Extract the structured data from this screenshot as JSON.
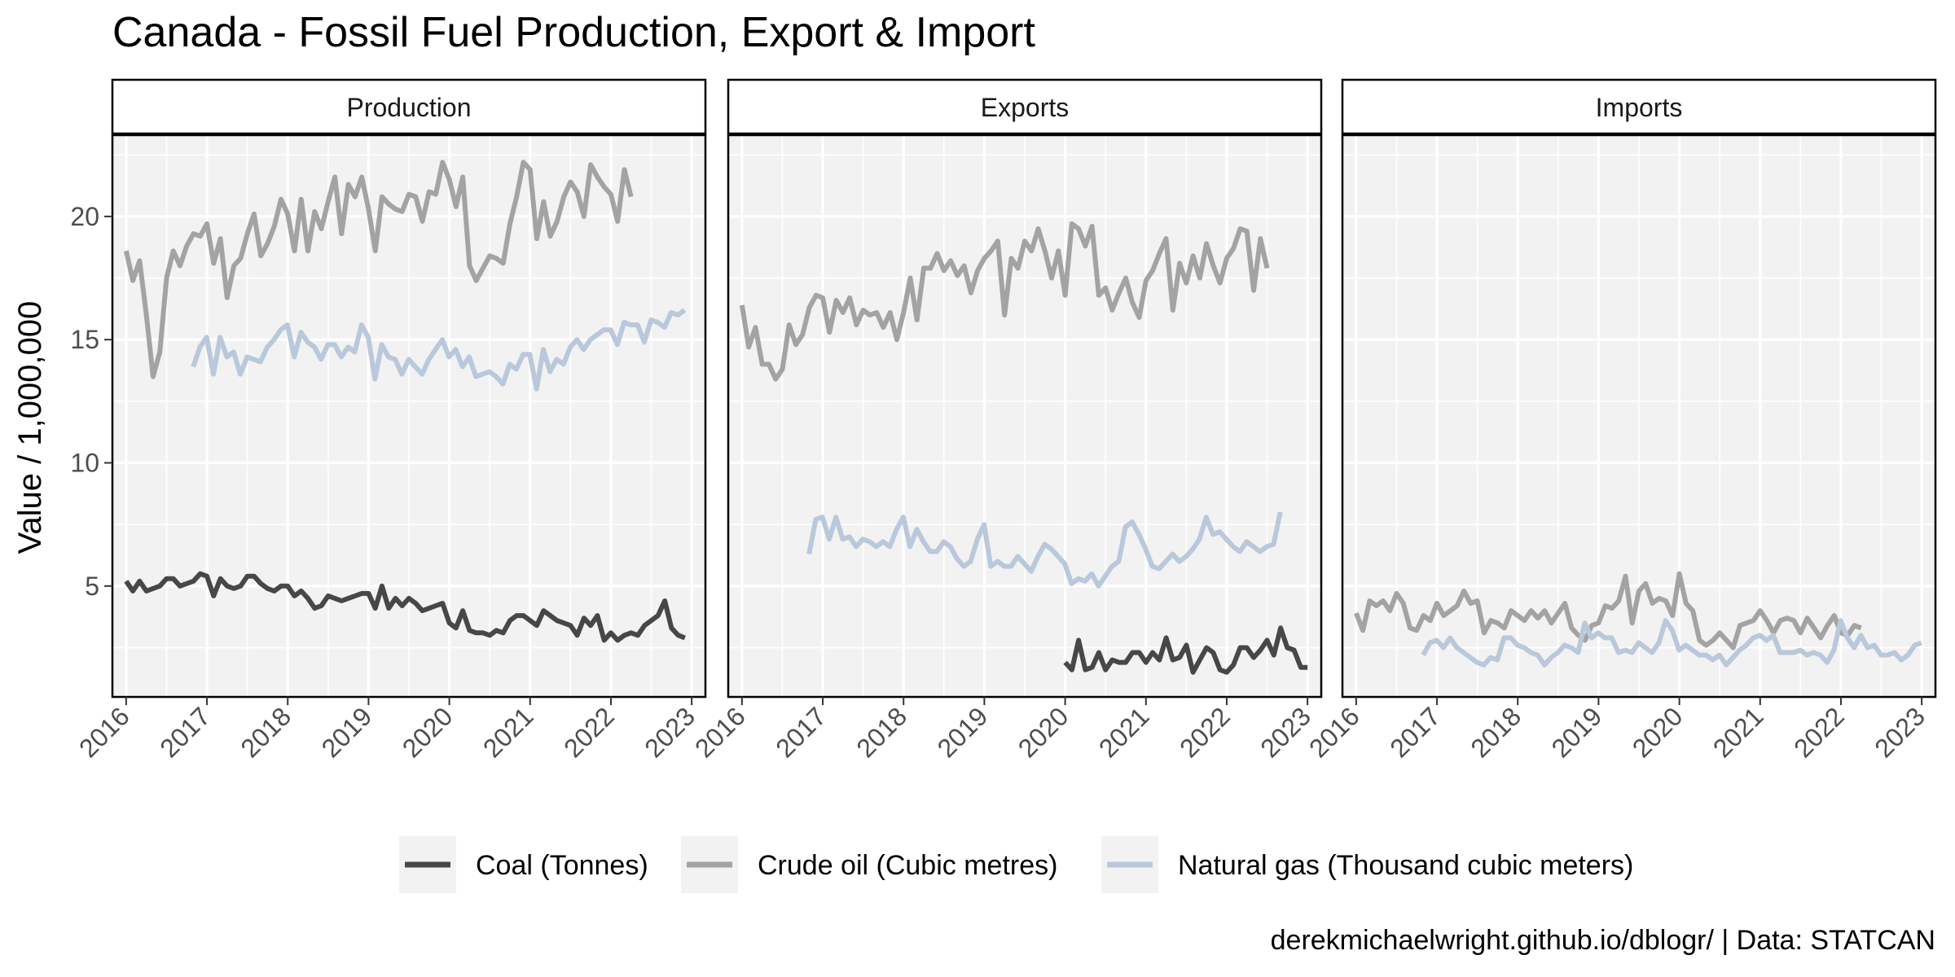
{
  "title": "Canada - Fossil Fuel Production, Export & Import",
  "caption": "derekmichaelwright.github.io/dblogr/ | Data: STATCAN",
  "chart_data": {
    "type": "line",
    "ylabel": "Value / 1,000,000",
    "ylim": [
      0.5,
      23.3
    ],
    "xlim": [
      2015.83,
      2023.17
    ],
    "x_ticks": [
      2016,
      2017,
      2018,
      2019,
      2020,
      2021,
      2022,
      2023
    ],
    "y_ticks": [
      5,
      10,
      15,
      20
    ],
    "grid": true,
    "legend_position": "bottom",
    "legend": [
      {
        "name": "Coal (Tonnes)",
        "color": "#474747"
      },
      {
        "name": "Crude oil (Cubic metres)",
        "color": "#a3a3a3"
      },
      {
        "name": "Natural gas (Thousand cubic meters)",
        "color": "#b9c8db"
      }
    ],
    "panels": [
      {
        "label": "Production",
        "series": [
          {
            "name": "Crude oil (Cubic metres)",
            "x_start": 2016.0,
            "step": 0.08333,
            "values": [
              18.6,
              17.4,
              18.2,
              16.0,
              13.5,
              14.5,
              17.5,
              18.6,
              18.0,
              18.8,
              19.3,
              19.2,
              19.7,
              18.1,
              19.1,
              16.7,
              18.0,
              18.3,
              19.3,
              20.1,
              18.4,
              18.9,
              19.6,
              20.7,
              20.1,
              18.6,
              20.7,
              18.6,
              20.2,
              19.5,
              20.6,
              21.6,
              19.3,
              21.3,
              20.8,
              21.6,
              20.3,
              18.6,
              20.8,
              20.5,
              20.3,
              20.2,
              20.9,
              20.8,
              19.8,
              21.0,
              20.9,
              22.2,
              21.5,
              20.4,
              21.6,
              18.0,
              17.4,
              17.9,
              18.4,
              18.3,
              18.1,
              19.7,
              20.8,
              22.2,
              21.9,
              19.1,
              20.6,
              19.2,
              19.8,
              20.8,
              21.4,
              21.0,
              20.0,
              22.1,
              21.6,
              21.2,
              20.9,
              19.8,
              21.9,
              20.8
            ]
          },
          {
            "name": "Natural gas (Thousand cubic meters)",
            "x_start": 2016.83,
            "step": 0.08333,
            "values": [
              13.9,
              14.7,
              15.1,
              13.6,
              15.1,
              14.3,
              14.5,
              13.6,
              14.3,
              14.2,
              14.1,
              14.7,
              15.0,
              15.4,
              15.6,
              14.3,
              15.3,
              14.9,
              14.7,
              14.2,
              14.8,
              14.8,
              14.3,
              14.7,
              14.5,
              15.6,
              15.1,
              13.4,
              14.8,
              14.3,
              14.2,
              13.6,
              14.2,
              13.9,
              13.6,
              14.2,
              14.6,
              15.0,
              14.3,
              14.6,
              13.9,
              14.3,
              13.5,
              13.6,
              13.7,
              13.5,
              13.2,
              14.0,
              13.8,
              14.4,
              14.4,
              13.0,
              14.6,
              13.7,
              14.2,
              14.0,
              14.7,
              15.0,
              14.6,
              15.0,
              15.2,
              15.4,
              15.4,
              14.8,
              15.7,
              15.6,
              15.6,
              14.9,
              15.8,
              15.7,
              15.5,
              16.1,
              16.0,
              16.2
            ]
          },
          {
            "name": "Coal (Tonnes)",
            "x_start": 2016.0,
            "step": 0.08333,
            "values": [
              5.2,
              4.8,
              5.2,
              4.8,
              4.9,
              5.0,
              5.3,
              5.3,
              5.0,
              5.1,
              5.2,
              5.5,
              5.4,
              4.6,
              5.3,
              5.0,
              4.9,
              5.0,
              5.4,
              5.4,
              5.1,
              4.9,
              4.8,
              5.0,
              5.0,
              4.6,
              4.8,
              4.5,
              4.1,
              4.2,
              4.6,
              4.5,
              4.4,
              4.5,
              4.6,
              4.7,
              4.7,
              4.1,
              5.0,
              4.1,
              4.5,
              4.2,
              4.5,
              4.3,
              4.0,
              4.1,
              4.2,
              4.3,
              3.5,
              3.3,
              4.0,
              3.2,
              3.1,
              3.1,
              3.0,
              3.2,
              3.1,
              3.6,
              3.8,
              3.8,
              3.6,
              3.4,
              4.0,
              3.8,
              3.6,
              3.5,
              3.4,
              3.0,
              3.7,
              3.4,
              3.8,
              2.8,
              3.1,
              2.8,
              3.0,
              3.1,
              3.0,
              3.4,
              3.6,
              3.8,
              4.4,
              3.3,
              3.0,
              2.9
            ]
          }
        ]
      },
      {
        "label": "Exports",
        "series": [
          {
            "name": "Crude oil (Cubic metres)",
            "x_start": 2016.0,
            "step": 0.08333,
            "values": [
              16.4,
              14.7,
              15.5,
              14.0,
              14.0,
              13.4,
              13.8,
              15.6,
              14.8,
              15.2,
              16.3,
              16.8,
              16.7,
              15.3,
              16.6,
              16.1,
              16.7,
              15.6,
              16.2,
              16.0,
              16.1,
              15.5,
              16.1,
              15.0,
              16.1,
              17.5,
              15.8,
              17.9,
              17.9,
              18.5,
              17.8,
              18.2,
              17.6,
              18.0,
              16.9,
              17.8,
              18.3,
              18.6,
              19.0,
              16.0,
              18.3,
              17.9,
              19.0,
              18.6,
              19.5,
              18.6,
              17.5,
              18.6,
              16.8,
              19.7,
              19.5,
              18.8,
              19.6,
              16.8,
              17.1,
              16.2,
              16.9,
              17.5,
              16.5,
              15.9,
              17.4,
              17.8,
              18.5,
              19.1,
              16.2,
              18.1,
              17.3,
              18.4,
              17.5,
              18.9,
              18.0,
              17.3,
              18.3,
              18.7,
              19.5,
              19.4,
              17.0,
              19.1,
              17.9
            ]
          },
          {
            "name": "Natural gas (Thousand cubic meters)",
            "x_start": 2016.83,
            "step": 0.08333,
            "values": [
              6.3,
              7.7,
              7.8,
              6.9,
              7.8,
              6.9,
              7.0,
              6.6,
              6.9,
              6.8,
              6.6,
              6.8,
              6.6,
              7.3,
              7.8,
              6.6,
              7.3,
              6.8,
              6.4,
              6.4,
              6.8,
              6.6,
              6.1,
              5.8,
              6.0,
              6.9,
              7.5,
              5.8,
              6.0,
              5.8,
              5.8,
              6.2,
              5.9,
              5.6,
              6.2,
              6.7,
              6.5,
              6.2,
              5.9,
              5.1,
              5.3,
              5.2,
              5.5,
              5.0,
              5.4,
              5.8,
              6.0,
              7.4,
              7.6,
              7.1,
              6.5,
              5.8,
              5.7,
              6.0,
              6.3,
              6.0,
              6.2,
              6.5,
              6.9,
              7.8,
              7.1,
              7.2,
              6.9,
              6.6,
              6.4,
              6.8,
              6.6,
              6.4,
              6.6,
              6.7,
              8.0
            ]
          },
          {
            "name": "Coal (Tonnes)",
            "x_start": 2020.0,
            "step": 0.08333,
            "values": [
              1.9,
              1.6,
              2.8,
              1.6,
              1.7,
              2.3,
              1.6,
              2.0,
              1.9,
              1.9,
              2.3,
              2.3,
              1.9,
              2.3,
              2.0,
              2.9,
              2.0,
              2.1,
              2.6,
              1.5,
              2.0,
              2.5,
              2.3,
              1.6,
              1.5,
              1.8,
              2.5,
              2.5,
              2.1,
              2.4,
              2.8,
              2.2,
              3.3,
              2.5,
              2.4,
              1.7,
              1.7
            ]
          }
        ]
      },
      {
        "label": "Imports",
        "series": [
          {
            "name": "Crude oil (Cubic metres)",
            "x_start": 2016.0,
            "step": 0.08333,
            "values": [
              3.9,
              3.2,
              4.4,
              4.2,
              4.4,
              4.0,
              4.7,
              4.3,
              3.3,
              3.2,
              3.8,
              3.6,
              4.3,
              3.8,
              4.0,
              4.2,
              4.8,
              4.3,
              4.4,
              3.1,
              3.6,
              3.5,
              3.3,
              4.0,
              3.8,
              3.6,
              4.0,
              3.7,
              4.0,
              3.5,
              3.9,
              4.3,
              3.3,
              3.0,
              2.8,
              3.4,
              3.5,
              4.2,
              4.1,
              4.4,
              5.4,
              3.5,
              4.8,
              5.1,
              4.3,
              4.5,
              4.4,
              3.8,
              5.5,
              4.3,
              4.0,
              2.8,
              2.6,
              2.8,
              3.1,
              2.8,
              2.5,
              3.4,
              3.5,
              3.6,
              4.0,
              3.6,
              3.1,
              3.6,
              3.7,
              3.6,
              3.1,
              3.7,
              3.3,
              2.9,
              3.4,
              3.8,
              3.1,
              3.0,
              3.4,
              3.3
            ]
          },
          {
            "name": "Natural gas (Thousand cubic meters)",
            "x_start": 2016.83,
            "step": 0.08333,
            "values": [
              2.2,
              2.7,
              2.8,
              2.5,
              2.9,
              2.5,
              2.3,
              2.1,
              1.9,
              1.8,
              2.1,
              2.0,
              2.9,
              2.9,
              2.6,
              2.5,
              2.3,
              2.2,
              1.8,
              2.1,
              2.3,
              2.6,
              2.5,
              2.3,
              3.5,
              2.9,
              3.1,
              2.9,
              2.9,
              2.3,
              2.4,
              2.3,
              2.7,
              2.5,
              2.3,
              2.7,
              3.6,
              3.2,
              2.4,
              2.6,
              2.4,
              2.2,
              2.2,
              2.0,
              2.2,
              1.8,
              2.1,
              2.4,
              2.6,
              2.9,
              3.0,
              2.8,
              3.0,
              2.3,
              2.3,
              2.3,
              2.4,
              2.2,
              2.3,
              2.2,
              1.9,
              2.4,
              3.6,
              2.9,
              2.5,
              3.0,
              2.5,
              2.6,
              2.2,
              2.2,
              2.3,
              2.0,
              2.2,
              2.6,
              2.7
            ]
          }
        ]
      }
    ]
  }
}
